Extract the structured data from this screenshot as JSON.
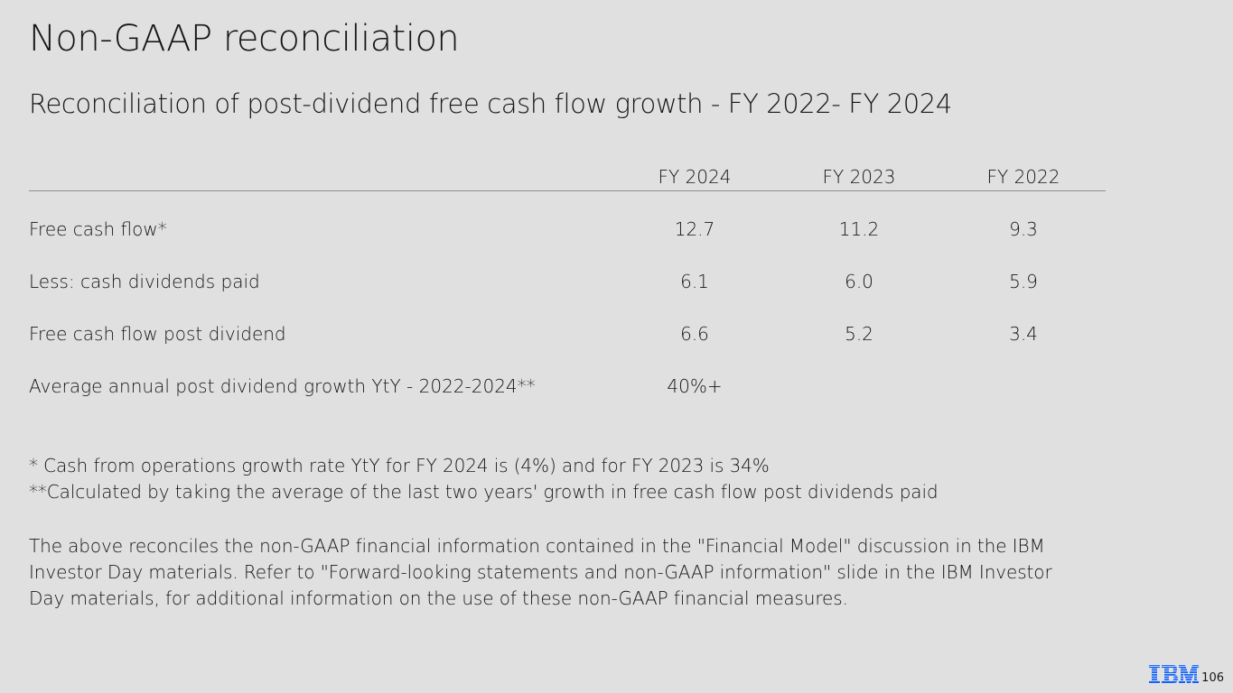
{
  "slide": {
    "title": "Non-GAAP reconciliation",
    "subtitle": "Reconciliation of post-dividend free cash flow growth - FY 2022- FY 2024",
    "page_number": "106"
  },
  "table": {
    "headers": [
      "FY 2024",
      "FY 2023",
      "FY 2022"
    ],
    "rows": [
      {
        "label": "Free cash flow*",
        "values": [
          "12.7",
          "11.2",
          "9.3"
        ]
      },
      {
        "label": "Less: cash dividends paid",
        "values": [
          "6.1",
          "6.0",
          "5.9"
        ]
      },
      {
        "label": "Free cash flow post dividend",
        "values": [
          "6.6",
          "5.2",
          "3.4"
        ]
      },
      {
        "label": "Average annual post dividend growth YtY  - 2022-2024**",
        "values": [
          "40%+",
          "",
          ""
        ]
      }
    ]
  },
  "footnotes": [
    "* Cash from operations growth rate YtY for FY 2024 is (4%) and for FY 2023 is 34%",
    "**Calculated by taking the average of the last two years' growth in free cash flow post dividends paid"
  ],
  "disclaimer_lines": [
    "The above reconciles the non-GAAP financial information contained in the \"Financial Model\" discussion in the IBM",
    "Investor Day materials. Refer to \"Forward-looking statements and non-GAAP information\" slide in the IBM Investor",
    "Day materials, for additional information on the use of these non-GAAP financial measures."
  ],
  "logo": {
    "text": "IBM",
    "icon": "ibm-logo-icon",
    "color": "#0f62fe"
  },
  "colors": {
    "background": "#e0e0e0",
    "text": "#161616",
    "rule": "#8d8d8d"
  }
}
